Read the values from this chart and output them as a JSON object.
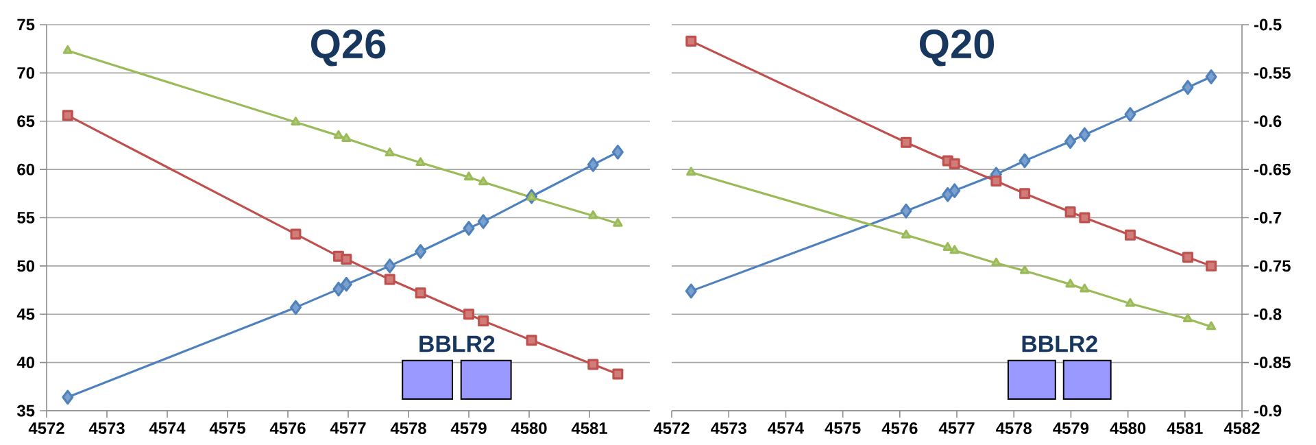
{
  "chart_data": [
    {
      "type": "line",
      "title": "Q26",
      "annotations": [
        "BBLR2"
      ],
      "xlim": [
        4572,
        4582
      ],
      "ylim": [
        35,
        75
      ],
      "xticks": [
        4572,
        4573,
        4574,
        4575,
        4576,
        4577,
        4578,
        4579,
        4580,
        4581
      ],
      "yticks": [
        35,
        40,
        45,
        50,
        55,
        60,
        65,
        70,
        75
      ],
      "grid": "y",
      "line_style": "solid",
      "x": [
        4572.35,
        4576.13,
        4576.84,
        4576.97,
        4577.69,
        4578.2,
        4579.0,
        4579.24,
        4580.04,
        4581.06,
        4581.47
      ],
      "series": [
        {
          "color": "#4f81bd",
          "marker": "diamond",
          "values": [
            36.4,
            45.7,
            47.6,
            48.1,
            50.0,
            51.5,
            53.9,
            54.6,
            57.2,
            60.5,
            61.8
          ]
        },
        {
          "color": "#c0504d",
          "marker": "square",
          "values": [
            65.6,
            53.3,
            51.0,
            50.7,
            48.6,
            47.2,
            45.0,
            44.3,
            42.3,
            39.8,
            38.8
          ]
        },
        {
          "color": "#9bbb59",
          "marker": "triangle",
          "values": [
            72.3,
            64.9,
            63.5,
            63.2,
            61.7,
            60.7,
            59.2,
            58.7,
            57.1,
            55.2,
            54.4
          ]
        }
      ]
    },
    {
      "type": "line",
      "title": "Q20",
      "annotations": [
        "BBLR2"
      ],
      "xlim": [
        4572,
        4582
      ],
      "ylim": [
        -0.9,
        -0.5
      ],
      "xticks": [
        4572,
        4573,
        4574,
        4575,
        4576,
        4577,
        4578,
        4579,
        4580,
        4581,
        4582
      ],
      "yticks": [
        -0.9,
        -0.85,
        -0.8,
        -0.75,
        -0.7,
        -0.65,
        -0.6,
        -0.55,
        -0.5
      ],
      "grid": "y",
      "line_style": "solid",
      "x": [
        4572.34,
        4576.11,
        4576.84,
        4576.96,
        4577.69,
        4578.19,
        4578.99,
        4579.24,
        4580.04,
        4581.05,
        4581.46
      ],
      "series": [
        {
          "color": "#4f81bd",
          "marker": "diamond",
          "values": [
            -0.776,
            -0.693,
            -0.676,
            -0.672,
            -0.655,
            -0.641,
            -0.621,
            -0.614,
            -0.593,
            -0.565,
            -0.554
          ]
        },
        {
          "color": "#c0504d",
          "marker": "square",
          "values": [
            -0.517,
            -0.622,
            -0.641,
            -0.644,
            -0.662,
            -0.675,
            -0.694,
            -0.7,
            -0.718,
            -0.741,
            -0.75
          ]
        },
        {
          "color": "#9bbb59",
          "marker": "triangle",
          "values": [
            -0.653,
            -0.718,
            -0.731,
            -0.734,
            -0.747,
            -0.755,
            -0.769,
            -0.774,
            -0.789,
            -0.805,
            -0.813
          ]
        }
      ]
    }
  ]
}
